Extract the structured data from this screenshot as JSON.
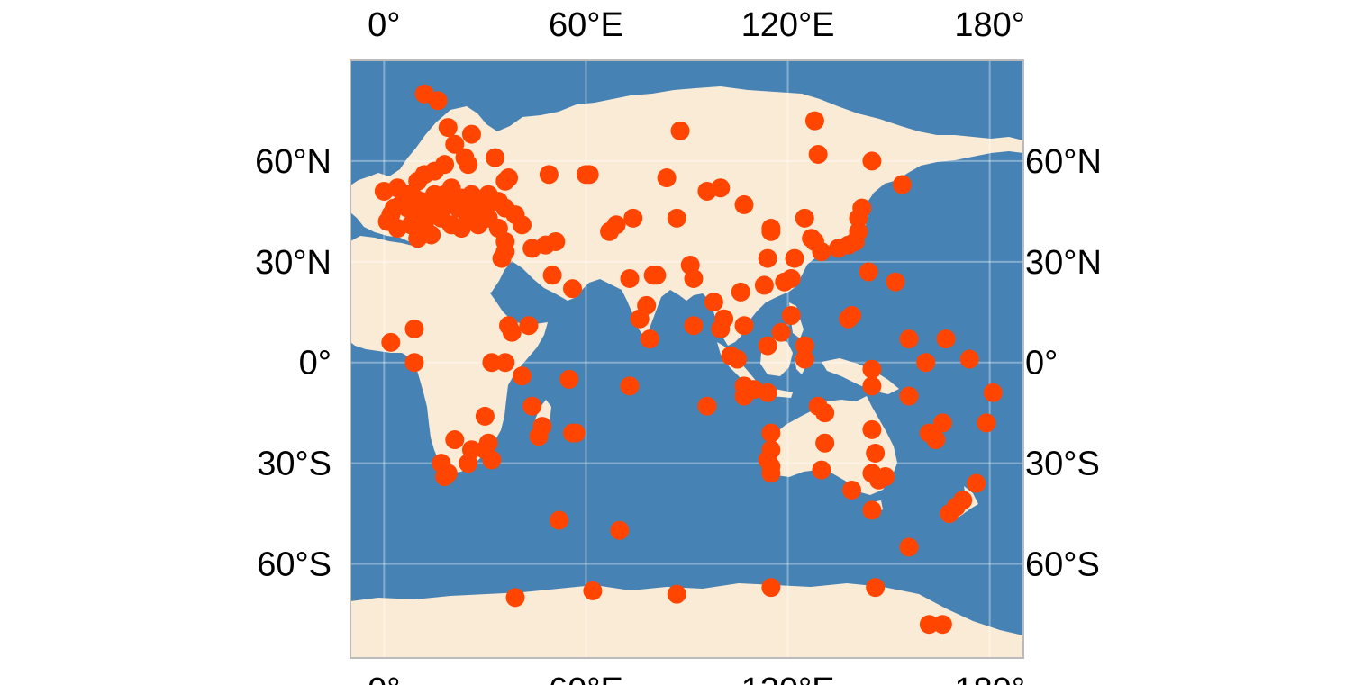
{
  "map": {
    "projection": "plate-carree",
    "extent": {
      "lon": [
        -10,
        190
      ],
      "lat": [
        -88,
        90
      ]
    },
    "colors": {
      "ocean": "#4682b4",
      "land": "#faebd7",
      "marker": "#ff4500",
      "frame": "#bbbbbb"
    },
    "lon_ticks": [
      {
        "value": 0,
        "label": "0°"
      },
      {
        "value": 60,
        "label": "60°E"
      },
      {
        "value": 120,
        "label": "120°E"
      },
      {
        "value": 180,
        "label": "180°"
      }
    ],
    "lat_ticks": [
      {
        "value": 60,
        "label": "60°N"
      },
      {
        "value": 30,
        "label": "30°N"
      },
      {
        "value": 0,
        "label": "0°"
      },
      {
        "value": -30,
        "label": "30°S"
      },
      {
        "value": -60,
        "label": "60°S"
      }
    ],
    "markers": [
      [
        12,
        80
      ],
      [
        16,
        78
      ],
      [
        19,
        70
      ],
      [
        26,
        68
      ],
      [
        21,
        65
      ],
      [
        33,
        61
      ],
      [
        24,
        61
      ],
      [
        18,
        59
      ],
      [
        25,
        59
      ],
      [
        15,
        57
      ],
      [
        12,
        56
      ],
      [
        10,
        54
      ],
      [
        0,
        51
      ],
      [
        4,
        52
      ],
      [
        7,
        50
      ],
      [
        9,
        49
      ],
      [
        11,
        48
      ],
      [
        13,
        47
      ],
      [
        15,
        50
      ],
      [
        18,
        50
      ],
      [
        20,
        52
      ],
      [
        23,
        49
      ],
      [
        26,
        50
      ],
      [
        27,
        47
      ],
      [
        22,
        46
      ],
      [
        19,
        47
      ],
      [
        16,
        45
      ],
      [
        13,
        44
      ],
      [
        11,
        43
      ],
      [
        9,
        45
      ],
      [
        7,
        46
      ],
      [
        5,
        47
      ],
      [
        3,
        46
      ],
      [
        2,
        44
      ],
      [
        1,
        42
      ],
      [
        4,
        40
      ],
      [
        8,
        41
      ],
      [
        12,
        41
      ],
      [
        14,
        38
      ],
      [
        10,
        37
      ],
      [
        17,
        43
      ],
      [
        20,
        41
      ],
      [
        23,
        40
      ],
      [
        25,
        43
      ],
      [
        28,
        41
      ],
      [
        31,
        43
      ],
      [
        29,
        46
      ],
      [
        31,
        50
      ],
      [
        31,
        47
      ],
      [
        34,
        48
      ],
      [
        36,
        46
      ],
      [
        37,
        55
      ],
      [
        36,
        54
      ],
      [
        39,
        44
      ],
      [
        41,
        41
      ],
      [
        34,
        40
      ],
      [
        36,
        36
      ],
      [
        36,
        33
      ],
      [
        35,
        31
      ],
      [
        44,
        34
      ],
      [
        48,
        35
      ],
      [
        51,
        36
      ],
      [
        49,
        56
      ],
      [
        60,
        56
      ],
      [
        61,
        56
      ],
      [
        50,
        26
      ],
      [
        56,
        22
      ],
      [
        67,
        39
      ],
      [
        69,
        41
      ],
      [
        74,
        43
      ],
      [
        84,
        55
      ],
      [
        88,
        69
      ],
      [
        87,
        43
      ],
      [
        73,
        25
      ],
      [
        80,
        26
      ],
      [
        81,
        26
      ],
      [
        91,
        29
      ],
      [
        92,
        25
      ],
      [
        96,
        51
      ],
      [
        100,
        52
      ],
      [
        107,
        47
      ],
      [
        98,
        18
      ],
      [
        101,
        13
      ],
      [
        100,
        10
      ],
      [
        106,
        21
      ],
      [
        92,
        11
      ],
      [
        78,
        17
      ],
      [
        76,
        13
      ],
      [
        79,
        7
      ],
      [
        107,
        11
      ],
      [
        115,
        40
      ],
      [
        115,
        39
      ],
      [
        125,
        43
      ],
      [
        127,
        37
      ],
      [
        128,
        36
      ],
      [
        130,
        33
      ],
      [
        135,
        34
      ],
      [
        138,
        35
      ],
      [
        140,
        36
      ],
      [
        141,
        39
      ],
      [
        141,
        43
      ],
      [
        142,
        46
      ],
      [
        122,
        31
      ],
      [
        114,
        31
      ],
      [
        113,
        23
      ],
      [
        119,
        24
      ],
      [
        121,
        25
      ],
      [
        121,
        14
      ],
      [
        118,
        9
      ],
      [
        114,
        5
      ],
      [
        125,
        5
      ],
      [
        125,
        1
      ],
      [
        138,
        13
      ],
      [
        139,
        14
      ],
      [
        144,
        27
      ],
      [
        152,
        24
      ],
      [
        156,
        7
      ],
      [
        145,
        60
      ],
      [
        154,
        53
      ],
      [
        128,
        72
      ],
      [
        129,
        62
      ],
      [
        103,
        2
      ],
      [
        105,
        1
      ],
      [
        107,
        -7
      ],
      [
        107,
        -10
      ],
      [
        110,
        -8
      ],
      [
        114,
        -9
      ],
      [
        96,
        -13
      ],
      [
        145,
        -2
      ],
      [
        145,
        -7
      ],
      [
        129,
        -13
      ],
      [
        131,
        -15
      ],
      [
        145,
        -20
      ],
      [
        146,
        -27
      ],
      [
        131,
        -24
      ],
      [
        130,
        -32
      ],
      [
        115,
        -21
      ],
      [
        115,
        -26
      ],
      [
        114,
        -29
      ],
      [
        115,
        -31
      ],
      [
        115,
        -33
      ],
      [
        139,
        -38
      ],
      [
        145,
        -33
      ],
      [
        147,
        -35
      ],
      [
        149,
        -34
      ],
      [
        145,
        -44
      ],
      [
        162,
        -21
      ],
      [
        164,
        -23
      ],
      [
        166,
        -18
      ],
      [
        168,
        -45
      ],
      [
        170,
        -43
      ],
      [
        172,
        -41
      ],
      [
        176,
        -36
      ],
      [
        179,
        -18
      ],
      [
        181,
        -9
      ],
      [
        167,
        7
      ],
      [
        174,
        1
      ],
      [
        161,
        0
      ],
      [
        156,
        -10
      ],
      [
        156,
        -55
      ],
      [
        162,
        -78
      ],
      [
        166,
        -78
      ],
      [
        146,
        -67
      ],
      [
        115,
        -67
      ],
      [
        87,
        -69
      ],
      [
        62,
        -68
      ],
      [
        39,
        -70
      ],
      [
        52,
        -47
      ],
      [
        70,
        -50
      ],
      [
        55,
        -5
      ],
      [
        73,
        -7
      ],
      [
        44,
        -13
      ],
      [
        47,
        -19
      ],
      [
        46,
        -22
      ],
      [
        56,
        -21
      ],
      [
        57,
        -21
      ],
      [
        30,
        -16
      ],
      [
        21,
        -23
      ],
      [
        17,
        -30
      ],
      [
        19,
        -33
      ],
      [
        18,
        -34
      ],
      [
        25,
        -30
      ],
      [
        26,
        -26
      ],
      [
        30,
        -26
      ],
      [
        31,
        -24
      ],
      [
        32,
        -29
      ],
      [
        36,
        0
      ],
      [
        41,
        -4
      ],
      [
        32,
        0
      ],
      [
        38,
        9
      ],
      [
        37,
        11
      ],
      [
        43,
        11
      ],
      [
        2,
        6
      ],
      [
        9,
        10
      ],
      [
        9,
        0
      ]
    ]
  }
}
